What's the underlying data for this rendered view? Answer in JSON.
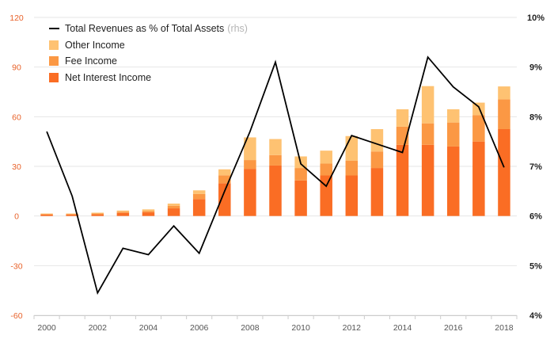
{
  "chart_data": {
    "type": "bar",
    "x": [
      "2000",
      "2001",
      "2002",
      "2003",
      "2004",
      "2005",
      "2006",
      "2007",
      "2008",
      "2009",
      "2010",
      "2011",
      "2012",
      "2013",
      "2014",
      "2015",
      "2016",
      "2017",
      "2018"
    ],
    "x_tick_labels": [
      "2000",
      "2002",
      "2004",
      "2006",
      "2008",
      "2010",
      "2012",
      "2014",
      "2016",
      "2018"
    ],
    "series": [
      {
        "name": "Net Interest Income",
        "kind": "stacked-bar",
        "color": "#fa6d24",
        "values": [
          0.8,
          0.8,
          1.0,
          1.8,
          2.2,
          4.6,
          10.2,
          19.8,
          28.5,
          30.5,
          21.5,
          24.5,
          24.5,
          29.0,
          43.0,
          43.0,
          42.0,
          45.0,
          52.5
        ]
      },
      {
        "name": "Fee Income",
        "kind": "stacked-bar",
        "color": "#fb9844",
        "values": [
          0.4,
          0.4,
          0.5,
          0.8,
          0.8,
          1.6,
          3.1,
          4.8,
          5.3,
          6.3,
          7.5,
          7.2,
          9.0,
          10.0,
          11.0,
          13.0,
          14.5,
          16.0,
          18.0
        ]
      },
      {
        "name": "Other Income",
        "kind": "stacked-bar",
        "color": "#fec272",
        "values": [
          0.3,
          0.3,
          0.5,
          0.7,
          1.0,
          1.3,
          2.2,
          3.6,
          13.7,
          9.7,
          7.0,
          7.8,
          14.8,
          13.5,
          10.5,
          22.5,
          8.0,
          7.5,
          7.8
        ]
      },
      {
        "name": "Total Revenues as % of Total Assets",
        "note": "(rhs)",
        "kind": "line",
        "axis": "right",
        "color": "#000000",
        "values": [
          7.7,
          6.4,
          4.45,
          5.35,
          5.22,
          5.8,
          5.25,
          6.5,
          7.7,
          9.1,
          7.05,
          6.6,
          7.62,
          7.45,
          7.28,
          9.2,
          8.6,
          8.2,
          6.98
        ]
      }
    ],
    "y_left": {
      "ticks": [
        "120",
        "90",
        "60",
        "30",
        "0",
        "-30",
        "-60"
      ],
      "ylim": [
        -60,
        120
      ],
      "color": "#e8622a"
    },
    "y_right": {
      "ticks": [
        "10%",
        "9%",
        "8%",
        "7%",
        "6%",
        "5%",
        "4%"
      ],
      "ylim": [
        4,
        10
      ]
    },
    "grid": true,
    "legend_placement": "top-left"
  }
}
